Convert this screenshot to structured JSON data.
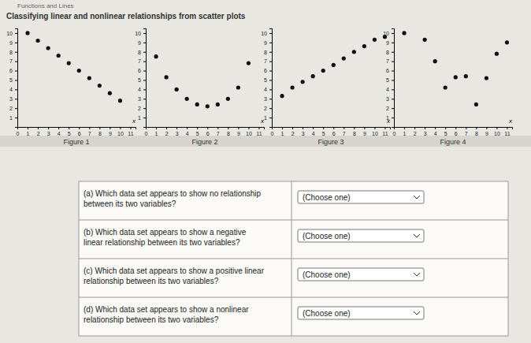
{
  "header": {
    "breadcrumb": "Functions and Lines",
    "title": "Classifying linear and nonlinear relationships from scatter plots"
  },
  "chart_data": [
    {
      "type": "scatter",
      "title": "Figure 1",
      "x_label": "x",
      "x": [
        1,
        2,
        3,
        4,
        5,
        6,
        7,
        8,
        9,
        10
      ],
      "values": [
        10,
        9.2,
        8.4,
        7.6,
        6.8,
        6,
        5.2,
        4.4,
        3.6,
        2.8
      ],
      "xlim": [
        0,
        11.5
      ],
      "ylim": [
        0,
        10.5
      ],
      "xticks": [
        0,
        1,
        2,
        3,
        4,
        5,
        6,
        7,
        8,
        9,
        10,
        11
      ],
      "yticks": [
        1,
        2,
        3,
        4,
        5,
        6,
        7,
        8,
        9,
        10
      ]
    },
    {
      "type": "scatter",
      "title": "Figure 2",
      "x_label": "x",
      "x": [
        1,
        2,
        3,
        4,
        5,
        6,
        7,
        8,
        9,
        10
      ],
      "values": [
        7.5,
        5.3,
        4,
        3,
        2.4,
        2.2,
        2.4,
        3,
        4.2,
        6.8
      ],
      "xlim": [
        0,
        11.5
      ],
      "ylim": [
        0,
        10.5
      ],
      "xticks": [
        0,
        1,
        2,
        3,
        4,
        5,
        6,
        7,
        8,
        9,
        10,
        11
      ],
      "yticks": [
        1,
        2,
        3,
        4,
        5,
        6,
        7,
        8,
        9,
        10
      ]
    },
    {
      "type": "scatter",
      "title": "Figure 3",
      "x_label": "x",
      "x": [
        1,
        2,
        3,
        4,
        5,
        6,
        7,
        8,
        9,
        10,
        11
      ],
      "values": [
        3.3,
        4.2,
        4.8,
        5.4,
        6,
        6.6,
        7.3,
        8,
        8.6,
        9.3,
        9.6
      ],
      "xlim": [
        0,
        11.5
      ],
      "ylim": [
        0,
        10.5
      ],
      "xticks": [
        0,
        1,
        2,
        3,
        4,
        5,
        6,
        7,
        8,
        9,
        10,
        11
      ],
      "yticks": [
        1,
        2,
        3,
        4,
        5,
        6,
        7,
        8,
        9,
        10
      ]
    },
    {
      "type": "scatter",
      "title": "Figure 4",
      "x_label": "x",
      "x": [
        1,
        3,
        4,
        5,
        6,
        7,
        8,
        9,
        10,
        11
      ],
      "values": [
        10,
        9.3,
        7,
        4.2,
        5.3,
        5.4,
        2.4,
        5.2,
        7.8,
        9
      ],
      "xlim": [
        0,
        11.5
      ],
      "ylim": [
        0,
        10.5
      ],
      "xticks": [
        0,
        1,
        2,
        3,
        4,
        5,
        6,
        7,
        8,
        9,
        10,
        11
      ],
      "yticks": [
        1,
        2,
        3,
        4,
        5,
        6,
        7,
        8,
        9,
        10
      ]
    }
  ],
  "questions": [
    {
      "text": [
        "(a) Which data set appears to show no relationship",
        "between its two variables?"
      ],
      "choice": "(Choose one)"
    },
    {
      "text": [
        "(b) Which data set appears to show a negative",
        "linear relationship between its two variables?"
      ],
      "choice": "(Choose one)"
    },
    {
      "text": [
        "(c) Which data set appears to show a positive linear",
        "relationship between its two variables?"
      ],
      "choice": "(Choose one)"
    },
    {
      "text": [
        "(d) Which data set appears to show a nonlinear",
        "relationship between its two variables?"
      ],
      "choice": "(Choose one)"
    }
  ]
}
